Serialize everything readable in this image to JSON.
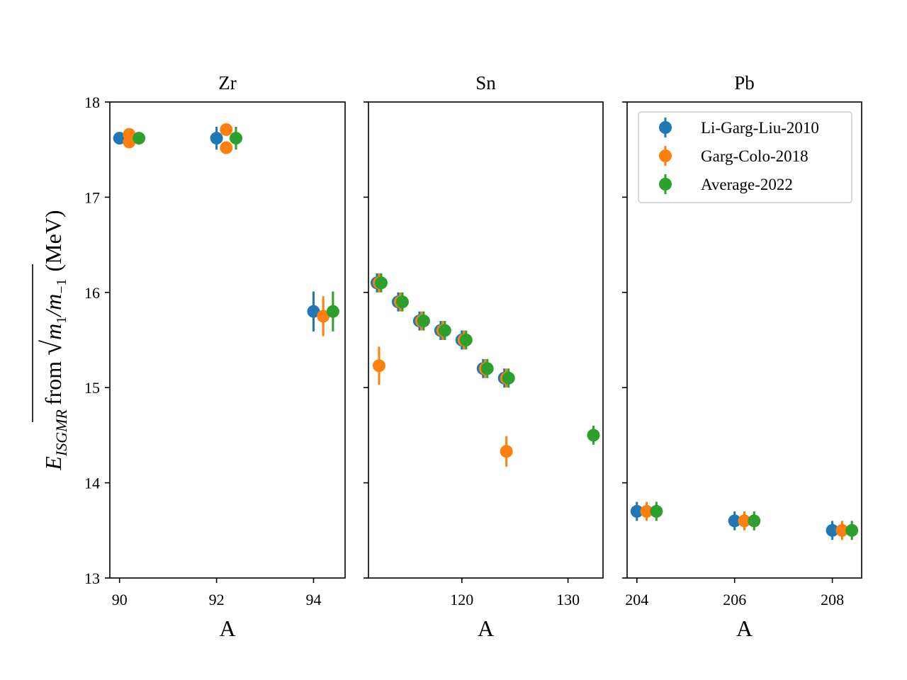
{
  "chart_data": {
    "type": "scatter",
    "ylabel": {
      "e": "E",
      "sub": "ISGMR",
      "from": "from",
      "m1": "m",
      "m1_sub": "1",
      "slash": "/",
      "m2": "m",
      "m2_sub": "−1",
      "unit": "(MeV)"
    },
    "ylim": [
      13,
      18
    ],
    "yticks": [
      13,
      14,
      15,
      16,
      17,
      18
    ],
    "grid": false,
    "legend": {
      "placement": "upper right of third panel",
      "entries": [
        "Li-Garg-Liu-2010",
        "Garg-Colo-2018",
        "Average-2022"
      ]
    },
    "series_colors": [
      "#1f77b4",
      "#ff7f0e",
      "#2ca02c"
    ],
    "panels": [
      {
        "title": "Zr",
        "xlabel": "A",
        "xlim": [
          89.8,
          94.65
        ],
        "xticks": [
          90,
          92,
          94
        ],
        "series": [
          {
            "name": "Li-Garg-Liu-2010",
            "points": [
              [
                90,
                17.62,
                0.03
              ],
              [
                92,
                17.62,
                0.12
              ],
              [
                94,
                15.8,
                0.21
              ]
            ]
          },
          {
            "name": "Garg-Colo-2018",
            "points": [
              [
                90.2,
                17.58,
                0.04
              ],
              [
                90.2,
                17.66,
                0.04
              ],
              [
                92.2,
                17.52,
                0.03
              ],
              [
                92.2,
                17.71,
                0.04
              ],
              [
                94.2,
                15.75,
                0.21
              ]
            ]
          },
          {
            "name": "Average-2022",
            "points": [
              [
                90.4,
                17.62,
                0.03
              ],
              [
                92.4,
                17.62,
                0.12
              ],
              [
                94.4,
                15.8,
                0.21
              ]
            ]
          }
        ]
      },
      {
        "title": "Sn",
        "xlabel": "A",
        "xlim": [
          111.2,
          133.3
        ],
        "xticks": [
          120,
          130
        ],
        "series": [
          {
            "name": "Li-Garg-Liu-2010",
            "points": [
              [
                112,
                16.1,
                0.1
              ],
              [
                114,
                15.9,
                0.1
              ],
              [
                116,
                15.7,
                0.1
              ],
              [
                118,
                15.6,
                0.1
              ],
              [
                120,
                15.5,
                0.1
              ],
              [
                122,
                15.2,
                0.1
              ],
              [
                124,
                15.1,
                0.1
              ]
            ]
          },
          {
            "name": "Garg-Colo-2018",
            "points": [
              [
                112.2,
                16.1,
                0.1
              ],
              [
                114.2,
                15.9,
                0.1
              ],
              [
                116.2,
                15.7,
                0.1
              ],
              [
                118.2,
                15.6,
                0.1
              ],
              [
                120.2,
                15.5,
                0.1
              ],
              [
                122.2,
                15.2,
                0.1
              ],
              [
                124.2,
                15.1,
                0.1
              ],
              [
                112.2,
                15.23,
                0.2
              ],
              [
                124.2,
                14.33,
                0.16
              ]
            ]
          },
          {
            "name": "Average-2022",
            "points": [
              [
                112.4,
                16.1,
                0.1
              ],
              [
                114.4,
                15.9,
                0.1
              ],
              [
                116.4,
                15.7,
                0.1
              ],
              [
                118.4,
                15.6,
                0.1
              ],
              [
                120.4,
                15.5,
                0.1
              ],
              [
                122.4,
                15.2,
                0.1
              ],
              [
                124.4,
                15.1,
                0.1
              ],
              [
                132.4,
                14.5,
                0.1
              ]
            ]
          }
        ]
      },
      {
        "title": "Pb",
        "xlabel": "A",
        "xlim": [
          203.8,
          208.6
        ],
        "xticks": [
          204,
          206,
          208
        ],
        "series": [
          {
            "name": "Li-Garg-Liu-2010",
            "points": [
              [
                204,
                13.7,
                0.1
              ],
              [
                206,
                13.6,
                0.1
              ],
              [
                208,
                13.5,
                0.1
              ]
            ]
          },
          {
            "name": "Garg-Colo-2018",
            "points": [
              [
                204.2,
                13.7,
                0.1
              ],
              [
                206.2,
                13.6,
                0.1
              ],
              [
                208.2,
                13.5,
                0.1
              ]
            ]
          },
          {
            "name": "Average-2022",
            "points": [
              [
                204.4,
                13.7,
                0.1
              ],
              [
                206.4,
                13.6,
                0.1
              ],
              [
                208.4,
                13.5,
                0.1
              ]
            ]
          }
        ]
      }
    ]
  }
}
